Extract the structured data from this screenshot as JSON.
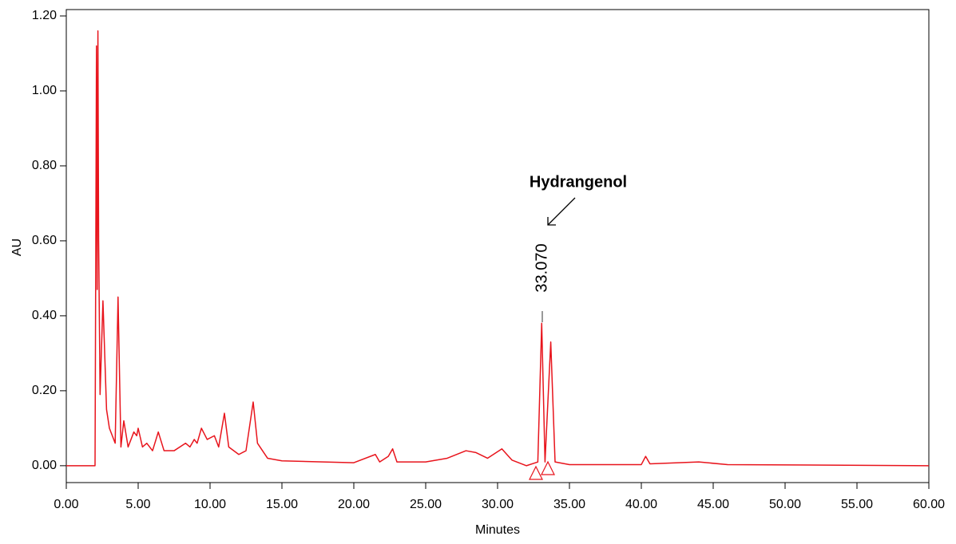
{
  "chart_data": {
    "type": "line",
    "xlabel": "Minutes",
    "ylabel": "AU",
    "color": "#e8141c",
    "xlim": [
      0,
      60
    ],
    "ylim": [
      -0.045,
      1.217
    ],
    "xticks": [
      {
        "value": 0,
        "label": "0.00"
      },
      {
        "value": 5,
        "label": "5.00"
      },
      {
        "value": 10,
        "label": "10.00"
      },
      {
        "value": 15,
        "label": "15.00"
      },
      {
        "value": 20,
        "label": "20.00"
      },
      {
        "value": 25,
        "label": "25.00"
      },
      {
        "value": 30,
        "label": "30.00"
      },
      {
        "value": 35,
        "label": "35.00"
      },
      {
        "value": 40,
        "label": "40.00"
      },
      {
        "value": 45,
        "label": "45.00"
      },
      {
        "value": 50,
        "label": "50.00"
      },
      {
        "value": 55,
        "label": "55.00"
      },
      {
        "value": 60,
        "label": "60.00"
      }
    ],
    "yticks": [
      {
        "value": 0,
        "label": "0.00"
      },
      {
        "value": 0.2,
        "label": "0.20"
      },
      {
        "value": 0.4,
        "label": "0.40"
      },
      {
        "value": 0.6,
        "label": "0.60"
      },
      {
        "value": 0.8,
        "label": "0.80"
      },
      {
        "value": 1,
        "label": "1.00"
      },
      {
        "value": 1.2,
        "label": "1.20"
      }
    ],
    "x": [
      0,
      2.0,
      2.1,
      2.15,
      2.2,
      2.25,
      2.35,
      2.55,
      2.8,
      3.0,
      3.4,
      3.6,
      3.8,
      4.0,
      4.3,
      4.7,
      4.9,
      5.0,
      5.3,
      5.6,
      6.0,
      6.4,
      6.8,
      7.5,
      8.3,
      8.6,
      8.9,
      9.1,
      9.4,
      9.8,
      10.3,
      10.6,
      11.0,
      11.3,
      12.0,
      12.5,
      13.0,
      13.3,
      14.0,
      15.0,
      20.0,
      21.5,
      21.8,
      22.4,
      22.7,
      23.0,
      25.0,
      26.5,
      27.8,
      28.5,
      29.3,
      30.3,
      31.0,
      32.0,
      32.8,
      33.07,
      33.3,
      33.7,
      34.0,
      35.0,
      40.0,
      40.3,
      40.6,
      44.0,
      46.0,
      60.0
    ],
    "values": [
      0,
      0,
      1.12,
      0.47,
      1.16,
      0.6,
      0.19,
      0.44,
      0.15,
      0.1,
      0.06,
      0.45,
      0.05,
      0.12,
      0.05,
      0.09,
      0.08,
      0.1,
      0.05,
      0.06,
      0.04,
      0.09,
      0.04,
      0.04,
      0.06,
      0.05,
      0.07,
      0.06,
      0.1,
      0.07,
      0.08,
      0.05,
      0.14,
      0.05,
      0.03,
      0.04,
      0.17,
      0.06,
      0.02,
      0.013,
      0.008,
      0.03,
      0.01,
      0.025,
      0.045,
      0.01,
      0.01,
      0.02,
      0.04,
      0.035,
      0.02,
      0.045,
      0.015,
      0.0,
      0.01,
      0.38,
      0.01,
      0.33,
      0.01,
      0.003,
      0.003,
      0.025,
      0.005,
      0.01,
      0.003,
      0.0
    ],
    "annotations": [
      "33.070",
      "Hydrangenol"
    ]
  }
}
